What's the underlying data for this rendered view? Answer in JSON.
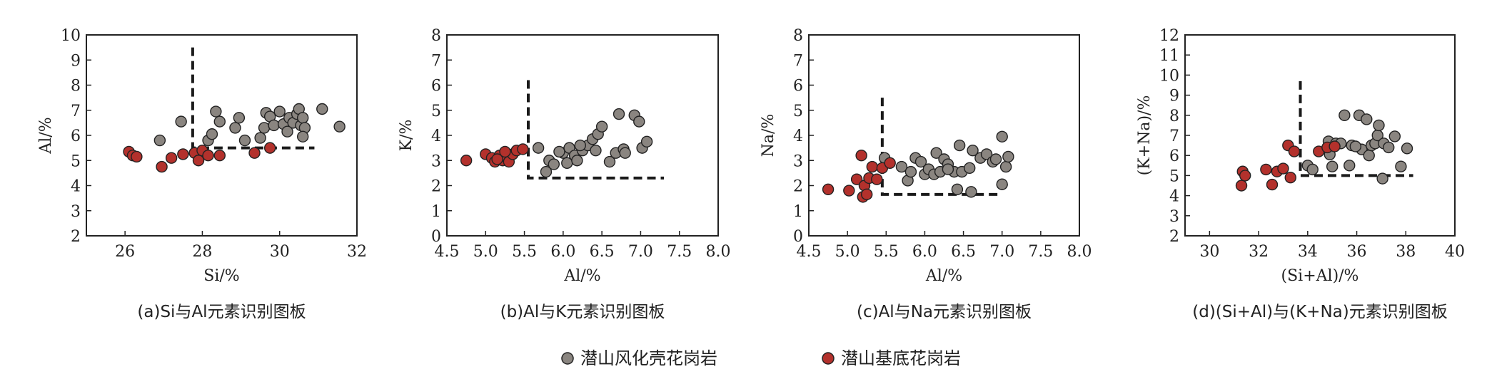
{
  "colors": {
    "weathered": "#8a8580",
    "basement": "#b3312c",
    "marker_edge": "#222222",
    "axis": "#222222"
  },
  "legend": [
    {
      "label": "潜山风化壳花岗岩",
      "color": "#8a8580"
    },
    {
      "label": "潜山基底花岗岩",
      "color": "#b3312c"
    }
  ],
  "chart_data": [
    {
      "type": "scatter",
      "caption": "(a)Si与Al元素识别图板",
      "xlabel": "Si/%",
      "ylabel": "Al/%",
      "xlim": [
        25,
        32
      ],
      "ylim": [
        2,
        10
      ],
      "xticks": [
        26,
        28,
        30,
        32
      ],
      "yticks": [
        2,
        3,
        4,
        5,
        6,
        7,
        8,
        9,
        10
      ],
      "boundary": [
        [
          27.75,
          9.5
        ],
        [
          27.75,
          5.5
        ],
        [
          30.9,
          5.5
        ]
      ],
      "series": [
        {
          "name": "潜山风化壳花岗岩",
          "points": [
            [
              26.9,
              5.8
            ],
            [
              27.45,
              6.55
            ],
            [
              28.05,
              5.3
            ],
            [
              28.15,
              5.8
            ],
            [
              28.25,
              6.05
            ],
            [
              28.35,
              6.95
            ],
            [
              28.45,
              6.55
            ],
            [
              28.85,
              6.3
            ],
            [
              28.95,
              6.7
            ],
            [
              29.1,
              5.8
            ],
            [
              29.5,
              5.9
            ],
            [
              29.6,
              6.3
            ],
            [
              29.65,
              6.9
            ],
            [
              29.75,
              6.75
            ],
            [
              29.85,
              6.4
            ],
            [
              30.0,
              6.95
            ],
            [
              30.1,
              6.45
            ],
            [
              30.25,
              6.7
            ],
            [
              30.35,
              6.5
            ],
            [
              30.45,
              6.85
            ],
            [
              30.55,
              6.4
            ],
            [
              30.5,
              7.05
            ],
            [
              30.6,
              6.7
            ],
            [
              30.65,
              6.3
            ],
            [
              30.6,
              5.95
            ],
            [
              31.1,
              7.05
            ],
            [
              31.55,
              6.35
            ],
            [
              30.2,
              6.15
            ]
          ]
        },
        {
          "name": "潜山基底花岗岩",
          "points": [
            [
              26.1,
              5.35
            ],
            [
              26.2,
              5.2
            ],
            [
              26.3,
              5.15
            ],
            [
              26.95,
              4.75
            ],
            [
              27.2,
              5.1
            ],
            [
              27.5,
              5.25
            ],
            [
              27.8,
              5.3
            ],
            [
              27.9,
              5.0
            ],
            [
              28.0,
              5.4
            ],
            [
              28.15,
              5.2
            ],
            [
              28.45,
              5.2
            ],
            [
              29.35,
              5.3
            ],
            [
              29.75,
              5.5
            ]
          ]
        }
      ]
    },
    {
      "type": "scatter",
      "caption": "(b)Al与K元素识别图板",
      "xlabel": "Al/%",
      "ylabel": "K/%",
      "xlim": [
        4.5,
        8.0
      ],
      "ylim": [
        0,
        8
      ],
      "xticks": [
        "4.5",
        "5.0",
        "5.5",
        "6.0",
        "6.5",
        "7.0",
        "7.5",
        "8.0"
      ],
      "yticks": [
        0,
        1,
        2,
        3,
        4,
        5,
        6,
        7,
        8
      ],
      "boundary": [
        [
          5.55,
          6.2
        ],
        [
          5.55,
          2.3
        ],
        [
          7.3,
          2.3
        ]
      ],
      "series": [
        {
          "name": "潜山风化壳花岗岩",
          "points": [
            [
              5.68,
              3.5
            ],
            [
              5.78,
              2.55
            ],
            [
              5.82,
              3.0
            ],
            [
              5.88,
              2.85
            ],
            [
              6.0,
              3.3
            ],
            [
              6.05,
              2.9
            ],
            [
              6.08,
              3.5
            ],
            [
              6.15,
              3.2
            ],
            [
              6.18,
              3.0
            ],
            [
              6.25,
              3.4
            ],
            [
              6.32,
              3.6
            ],
            [
              6.38,
              3.85
            ],
            [
              6.45,
              4.05
            ],
            [
              6.5,
              4.35
            ],
            [
              6.6,
              2.95
            ],
            [
              6.68,
              3.3
            ],
            [
              6.72,
              4.85
            ],
            [
              6.78,
              3.45
            ],
            [
              6.8,
              3.3
            ],
            [
              6.92,
              4.8
            ],
            [
              6.98,
              4.55
            ],
            [
              7.02,
              3.5
            ],
            [
              7.08,
              3.75
            ],
            [
              6.42,
              3.4
            ],
            [
              6.22,
              3.6
            ],
            [
              5.95,
              3.35
            ]
          ]
        },
        {
          "name": "潜山基底花岗岩",
          "points": [
            [
              4.75,
              3.0
            ],
            [
              5.0,
              3.25
            ],
            [
              5.08,
              3.1
            ],
            [
              5.12,
              2.95
            ],
            [
              5.18,
              3.2
            ],
            [
              5.22,
              3.0
            ],
            [
              5.28,
              3.1
            ],
            [
              5.3,
              2.95
            ],
            [
              5.35,
              3.25
            ],
            [
              5.4,
              3.4
            ],
            [
              5.25,
              3.35
            ],
            [
              5.48,
              3.45
            ],
            [
              5.15,
              3.05
            ]
          ]
        }
      ]
    },
    {
      "type": "scatter",
      "caption": "(c)Al与Na元素识别图板",
      "xlabel": "Al/%",
      "ylabel": "Na/%",
      "xlim": [
        4.5,
        8.0
      ],
      "ylim": [
        0,
        8
      ],
      "xticks": [
        "4.5",
        "5.0",
        "5.5",
        "6.0",
        "6.5",
        "7.0",
        "7.5",
        "8.0"
      ],
      "yticks": [
        0,
        1,
        2,
        3,
        4,
        5,
        6,
        7,
        8
      ],
      "boundary": [
        [
          5.45,
          5.5
        ],
        [
          5.45,
          1.65
        ],
        [
          6.95,
          1.65
        ]
      ],
      "series": [
        {
          "name": "潜山风化壳花岗岩",
          "points": [
            [
              5.48,
              3.1
            ],
            [
              5.7,
              2.75
            ],
            [
              5.78,
              2.2
            ],
            [
              5.82,
              2.55
            ],
            [
              5.88,
              3.1
            ],
            [
              5.95,
              2.95
            ],
            [
              6.0,
              2.45
            ],
            [
              6.05,
              2.65
            ],
            [
              6.12,
              2.45
            ],
            [
              6.15,
              3.3
            ],
            [
              6.2,
              2.55
            ],
            [
              6.25,
              3.05
            ],
            [
              6.3,
              2.85
            ],
            [
              6.38,
              2.55
            ],
            [
              6.42,
              1.85
            ],
            [
              6.45,
              3.6
            ],
            [
              6.48,
              2.55
            ],
            [
              6.58,
              2.7
            ],
            [
              6.6,
              1.75
            ],
            [
              6.62,
              3.4
            ],
            [
              6.72,
              3.1
            ],
            [
              6.8,
              3.25
            ],
            [
              6.88,
              2.95
            ],
            [
              6.92,
              3.05
            ],
            [
              7.0,
              2.05
            ],
            [
              7.0,
              3.95
            ],
            [
              7.05,
              2.75
            ],
            [
              7.08,
              3.15
            ],
            [
              6.3,
              2.65
            ]
          ]
        },
        {
          "name": "潜山基底花岗岩",
          "points": [
            [
              4.75,
              1.85
            ],
            [
              5.02,
              1.8
            ],
            [
              5.12,
              2.25
            ],
            [
              5.18,
              3.2
            ],
            [
              5.2,
              1.55
            ],
            [
              5.22,
              2.0
            ],
            [
              5.25,
              1.65
            ],
            [
              5.28,
              2.3
            ],
            [
              5.32,
              2.75
            ],
            [
              5.38,
              2.25
            ],
            [
              5.45,
              2.7
            ],
            [
              5.55,
              2.9
            ]
          ]
        }
      ]
    },
    {
      "type": "scatter",
      "caption": "(d)(Si+Al)与(K+Na)元素识别图板",
      "xlabel": "(Si+Al)/%",
      "ylabel": "(K+Na)/%",
      "xlim": [
        29,
        40
      ],
      "ylim": [
        2,
        12
      ],
      "xticks": [
        30,
        32,
        34,
        36,
        38,
        40
      ],
      "yticks": [
        2,
        3,
        4,
        5,
        6,
        7,
        8,
        9,
        10,
        11,
        12
      ],
      "boundary": [
        [
          33.7,
          9.7
        ],
        [
          33.7,
          5.0
        ],
        [
          38.3,
          5.0
        ]
      ],
      "series": [
        {
          "name": "潜山风化壳花岗岩",
          "points": [
            [
              34.0,
              5.5
            ],
            [
              34.2,
              5.3
            ],
            [
              34.85,
              6.7
            ],
            [
              34.9,
              6.05
            ],
            [
              35.0,
              5.45
            ],
            [
              35.15,
              6.6
            ],
            [
              35.35,
              6.6
            ],
            [
              35.5,
              8.0
            ],
            [
              35.7,
              5.5
            ],
            [
              35.8,
              6.5
            ],
            [
              36.1,
              8.0
            ],
            [
              36.2,
              6.3
            ],
            [
              36.4,
              7.8
            ],
            [
              36.5,
              6.0
            ],
            [
              36.6,
              6.5
            ],
            [
              36.75,
              6.6
            ],
            [
              36.85,
              7.0
            ],
            [
              36.9,
              7.5
            ],
            [
              37.05,
              4.85
            ],
            [
              37.1,
              6.6
            ],
            [
              37.3,
              6.4
            ],
            [
              37.55,
              6.95
            ],
            [
              37.8,
              5.45
            ],
            [
              38.05,
              6.35
            ],
            [
              35.95,
              6.45
            ]
          ]
        },
        {
          "name": "潜山基底花岗岩",
          "points": [
            [
              31.3,
              4.5
            ],
            [
              31.35,
              5.2
            ],
            [
              31.45,
              5.0
            ],
            [
              32.3,
              5.3
            ],
            [
              32.55,
              4.55
            ],
            [
              32.75,
              5.2
            ],
            [
              33.0,
              5.35
            ],
            [
              33.2,
              6.5
            ],
            [
              33.3,
              4.9
            ],
            [
              33.45,
              6.2
            ],
            [
              34.45,
              6.2
            ],
            [
              34.8,
              6.4
            ],
            [
              35.1,
              6.45
            ]
          ]
        }
      ]
    }
  ]
}
